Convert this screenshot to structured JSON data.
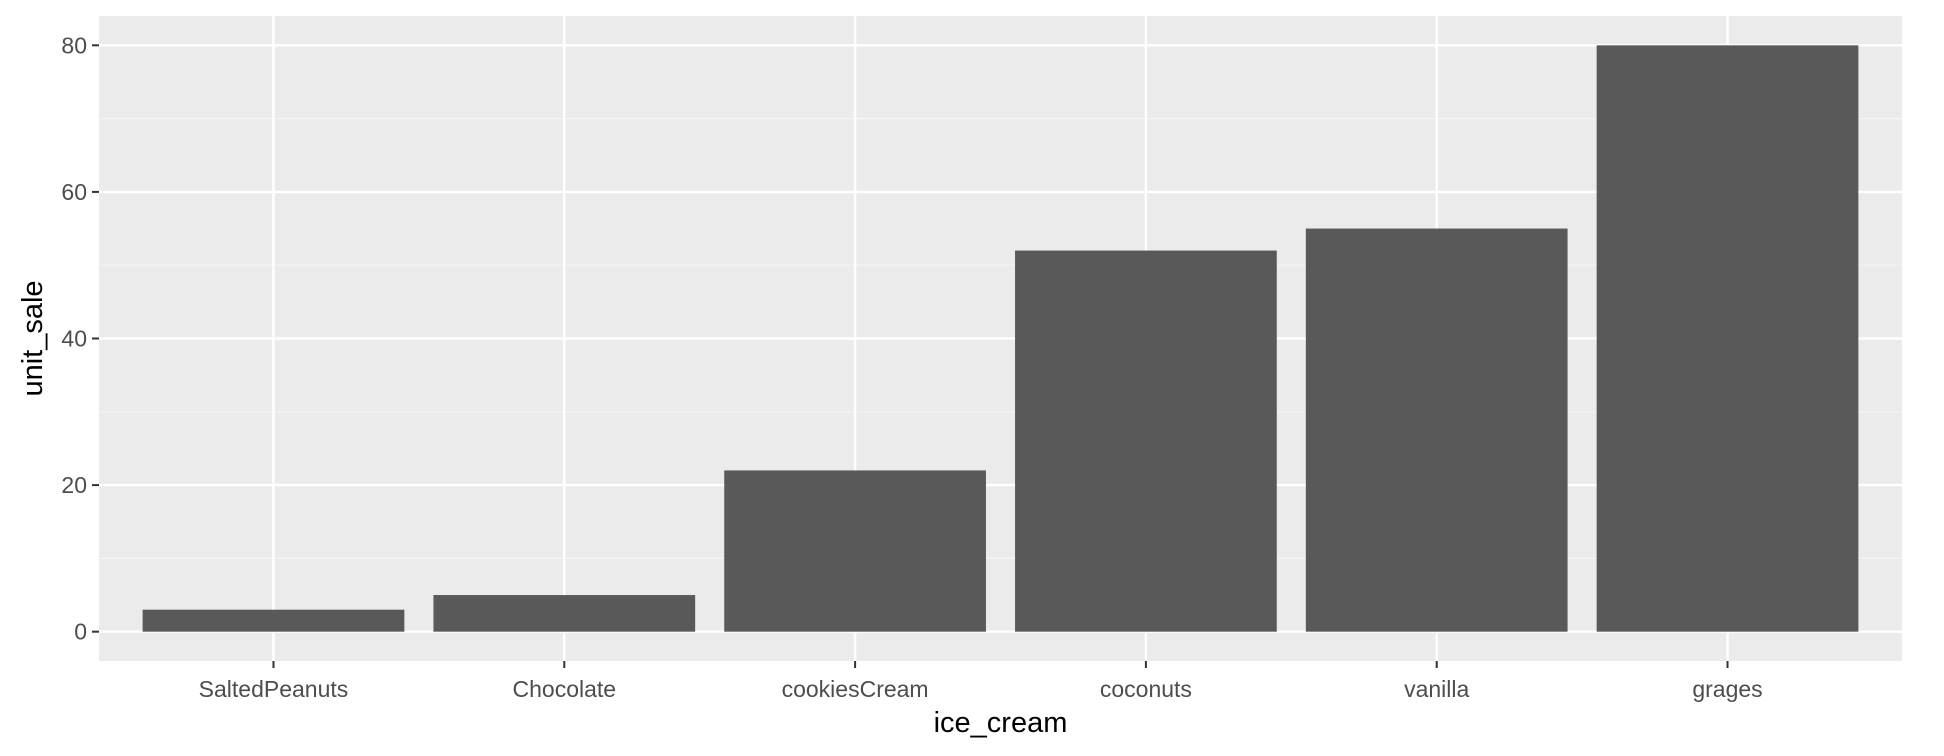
{
  "chart_data": {
    "type": "bar",
    "categories": [
      "SaltedPeanuts",
      "Chocolate",
      "cookiesCream",
      "coconuts",
      "vanilla",
      "grages"
    ],
    "values": [
      3,
      5,
      22,
      52,
      55,
      80
    ],
    "xlabel": "ice_cream",
    "ylabel": "unit_sale",
    "ylim": [
      -4,
      84
    ],
    "yticks": [
      0,
      20,
      40,
      60,
      80
    ],
    "grid": true,
    "colors": {
      "bar": "#595959",
      "panel": "#ebebeb",
      "grid_major": "#ffffff",
      "grid_minor": "#f5f5f5",
      "tick": "#333333",
      "tick_label": "#4d4d4d"
    }
  }
}
